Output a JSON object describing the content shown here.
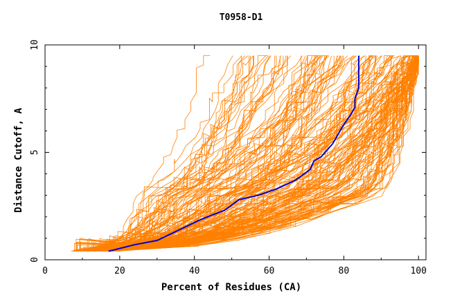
{
  "chart_data": {
    "type": "line",
    "title": "T0958-D1",
    "xlabel": "Percent of Residues (CA)",
    "ylabel": "Distance Cutoff, A",
    "xlim": [
      0,
      102
    ],
    "ylim": [
      0,
      10
    ],
    "x_ticks": [
      0,
      20,
      40,
      60,
      80,
      100
    ],
    "y_ticks": [
      0,
      5,
      10
    ],
    "background_series": {
      "name": "other models",
      "color": "#ff8000",
      "count": 180,
      "note": "many overlapping GDT curves; approximate envelope",
      "y_range": [
        0.4,
        9.5
      ]
    },
    "highlight_series": {
      "name": "highlighted model",
      "color": "#0000cc",
      "points": [
        [
          17,
          0.4
        ],
        [
          24,
          0.7
        ],
        [
          30,
          0.9
        ],
        [
          36,
          1.4
        ],
        [
          42,
          1.9
        ],
        [
          48,
          2.3
        ],
        [
          52,
          2.8
        ],
        [
          57,
          3.0
        ],
        [
          62,
          3.3
        ],
        [
          67,
          3.7
        ],
        [
          71,
          4.2
        ],
        [
          72,
          4.6
        ],
        [
          74,
          4.8
        ],
        [
          77,
          5.4
        ],
        [
          79,
          6.0
        ],
        [
          80,
          6.3
        ],
        [
          82,
          6.8
        ],
        [
          83,
          7.1
        ],
        [
          83,
          7.5
        ],
        [
          84,
          8.0
        ],
        [
          84,
          9.5
        ]
      ]
    },
    "grid": false,
    "legend": "none"
  }
}
